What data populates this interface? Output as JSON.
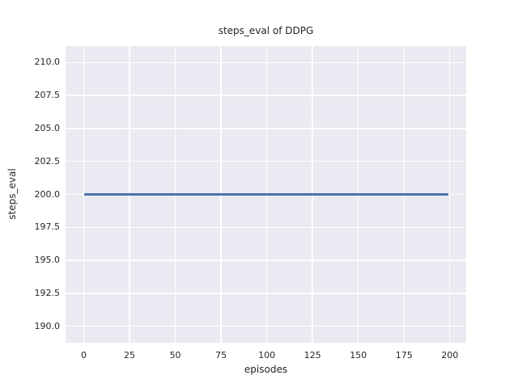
{
  "chart_data": {
    "type": "line",
    "title": "steps_eval of DDPG",
    "xlabel": "episodes",
    "ylabel": "steps_eval",
    "xlim": [
      -9.95,
      208.95
    ],
    "ylim": [
      188.75,
      211.25
    ],
    "xticks": [
      0,
      25,
      50,
      75,
      100,
      125,
      150,
      175,
      200
    ],
    "xtick_labels": [
      "0",
      "25",
      "50",
      "75",
      "100",
      "125",
      "150",
      "175",
      "200"
    ],
    "yticks": [
      190.0,
      192.5,
      195.0,
      197.5,
      200.0,
      202.5,
      205.0,
      207.5,
      210.0
    ],
    "ytick_labels": [
      "190.0",
      "192.5",
      "195.0",
      "197.5",
      "200.0",
      "202.5",
      "205.0",
      "207.5",
      "210.0"
    ],
    "grid": true,
    "legend_position": "none",
    "series": [
      {
        "name": "DDPG",
        "x": [
          0,
          199
        ],
        "y": [
          200.0,
          200.0
        ],
        "color": "#4c72b0"
      }
    ],
    "colors": {
      "figure_background": "#ffffff",
      "plot_background": "#eaeaf2",
      "gridline": "#ffffff",
      "text": "#262626"
    }
  }
}
